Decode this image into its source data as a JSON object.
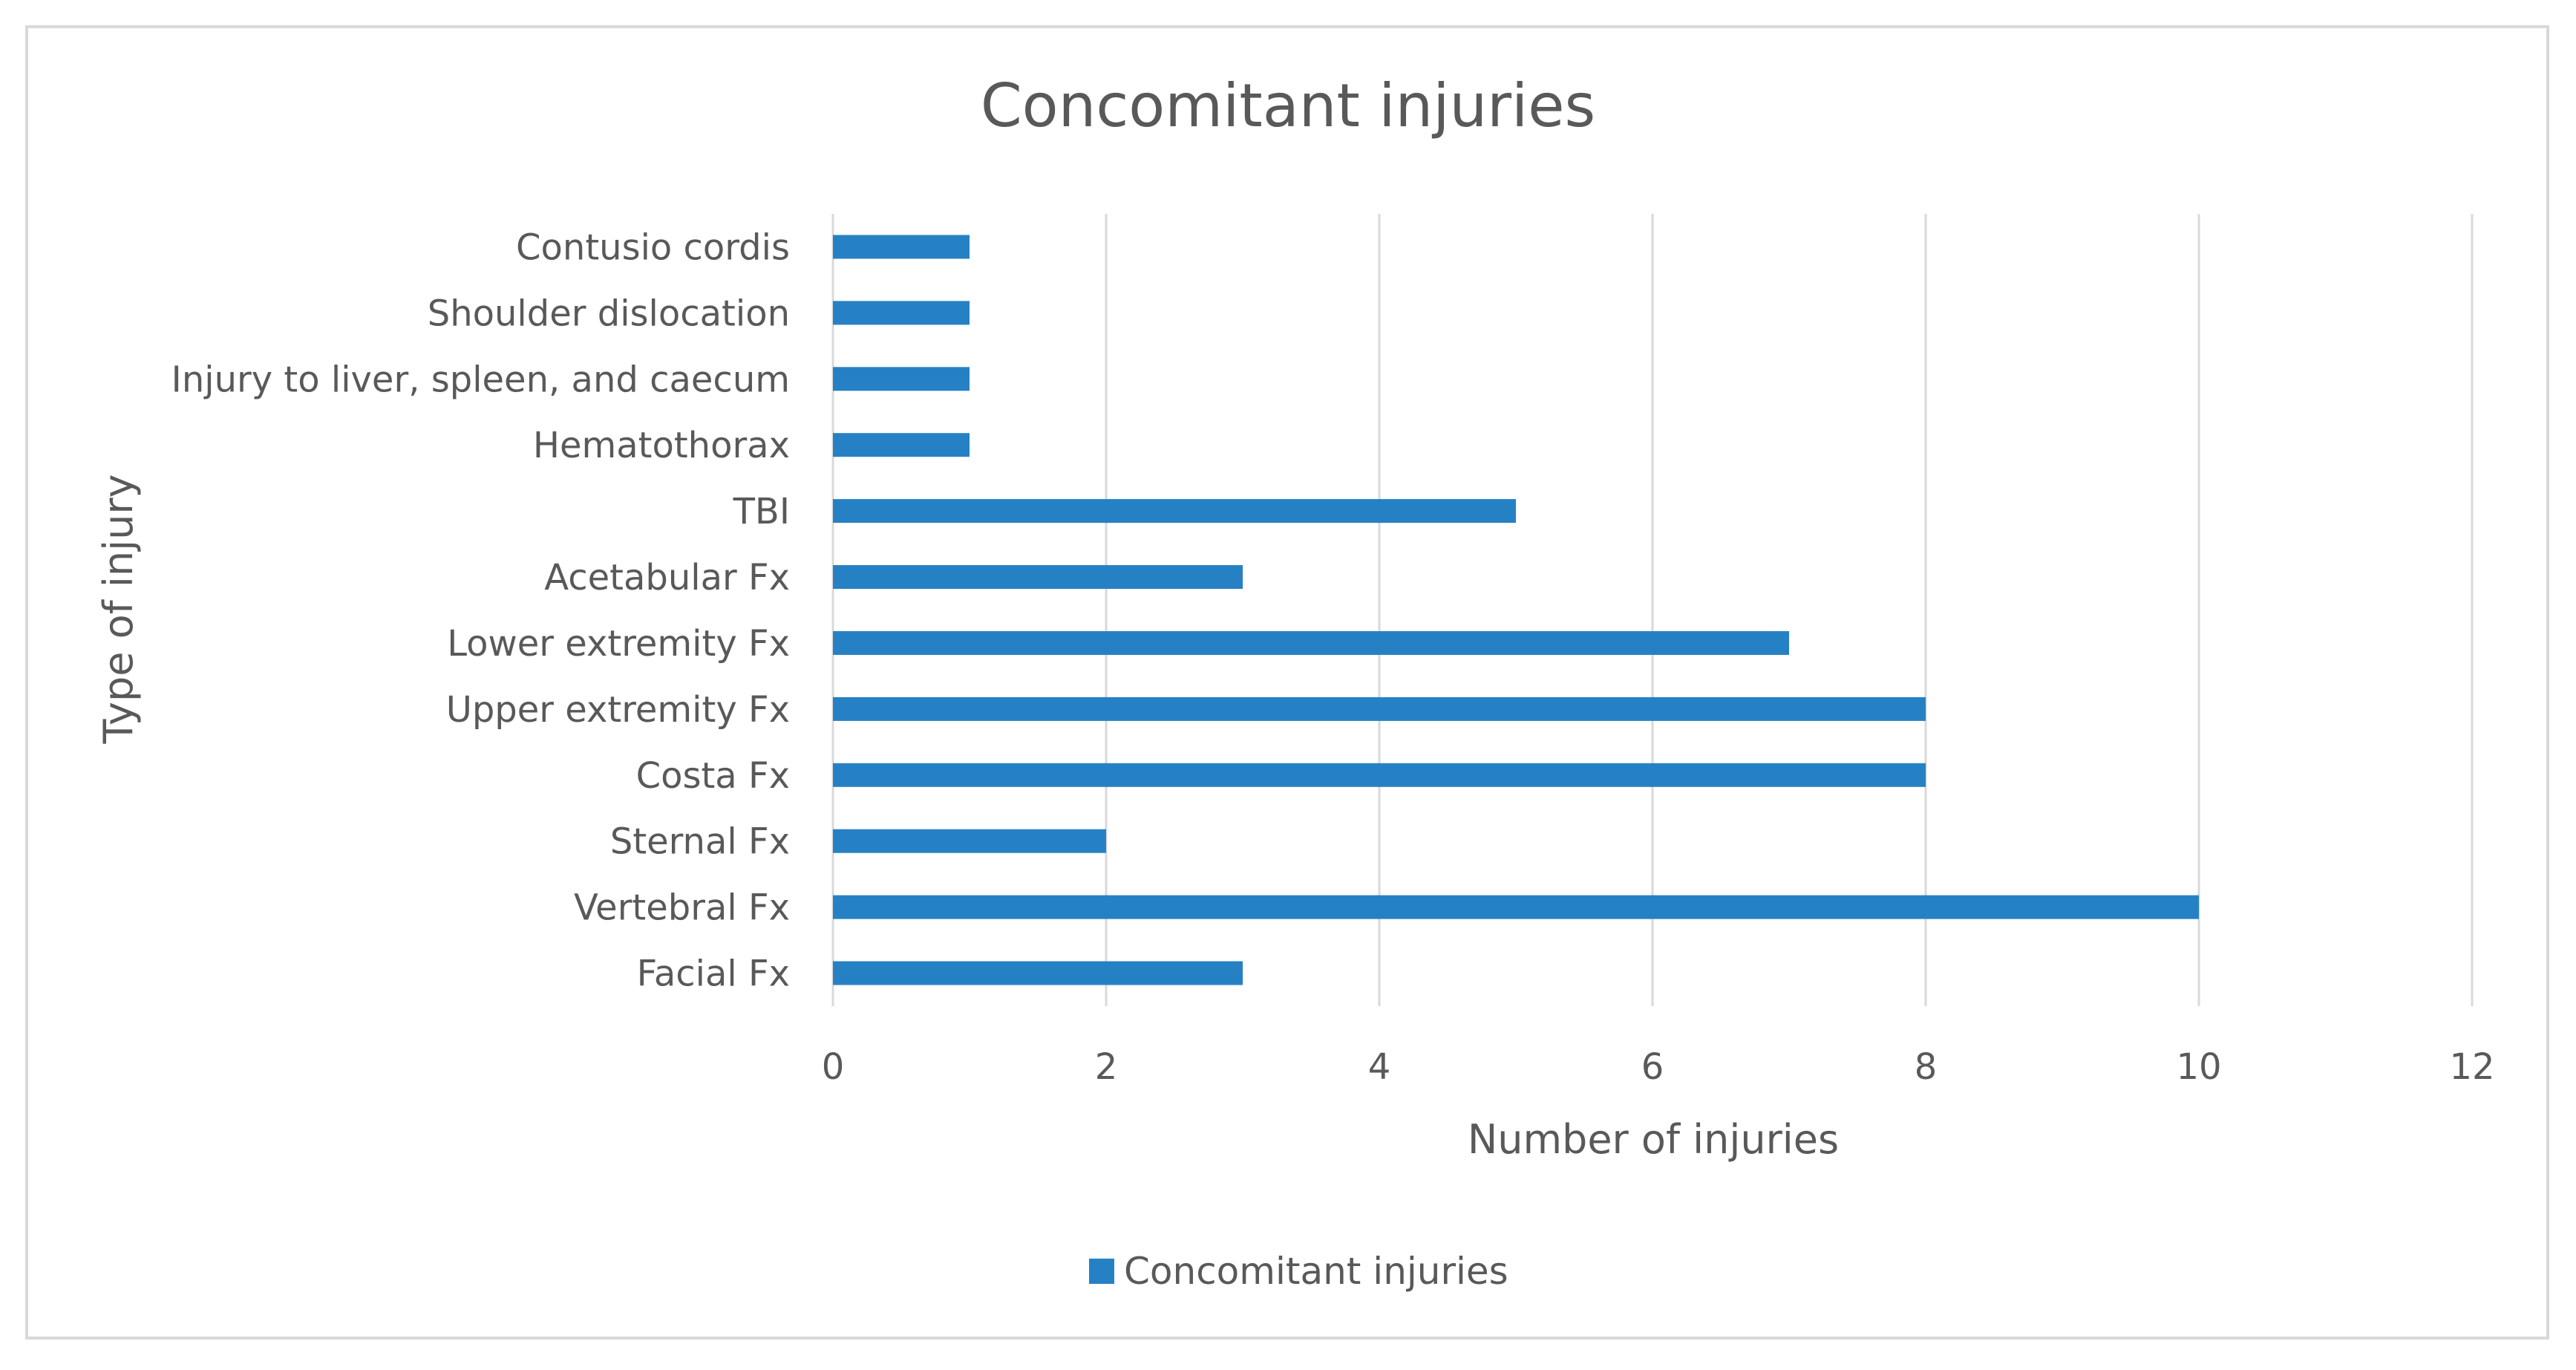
{
  "chart_data": {
    "type": "bar",
    "orientation": "horizontal",
    "title": "Concomitant injuries",
    "xlabel": "Number of injuries",
    "ylabel": "Type of injury",
    "xlim": [
      0,
      12
    ],
    "xticks": [
      0,
      2,
      4,
      6,
      8,
      10,
      12
    ],
    "grid": true,
    "legend_position": "bottom",
    "categories": [
      "Contusio cordis",
      "Shoulder dislocation",
      "Injury to liver, spleen, and caecum",
      "Hematothorax",
      "TBI",
      "Acetabular Fx",
      "Lower extremity Fx",
      "Upper extremity Fx",
      "Costa Fx",
      "Sternal Fx",
      "Vertebral Fx",
      "Facial Fx"
    ],
    "series": [
      {
        "name": "Concomitant injuries",
        "color": "#2681c4",
        "values": [
          1,
          1,
          1,
          1,
          5,
          3,
          7,
          8,
          8,
          2,
          10,
          3
        ]
      }
    ]
  }
}
